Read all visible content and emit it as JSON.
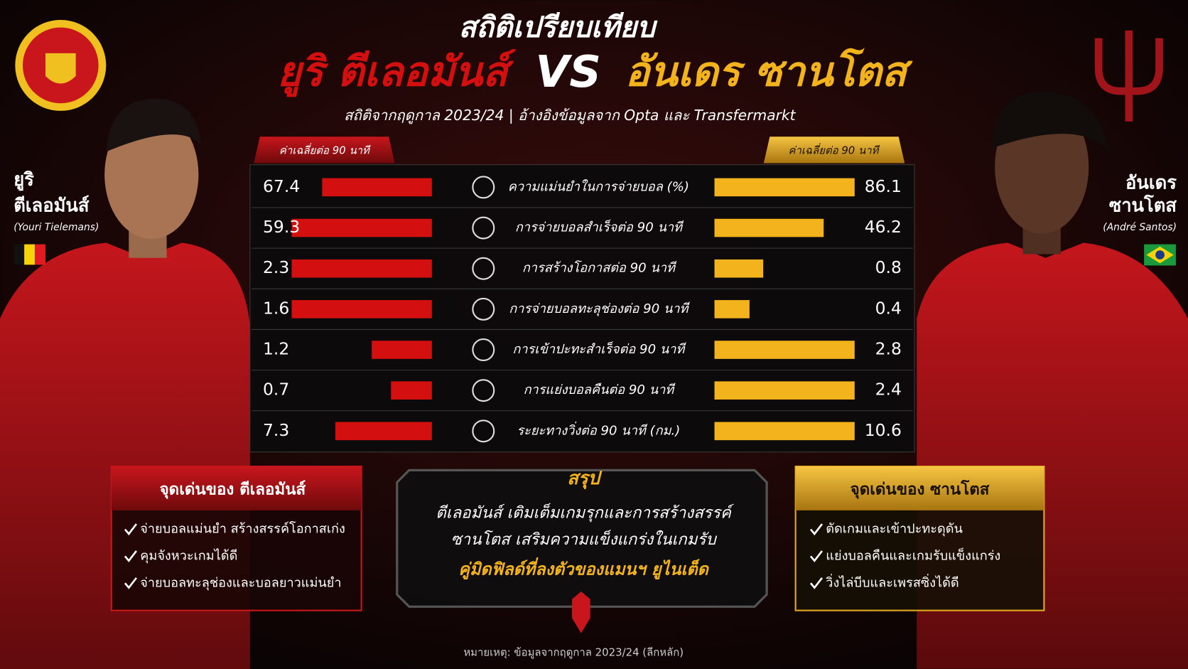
{
  "header": {
    "title": "สถิติเปรียบเทียบ",
    "left_name": "ยูริ ตีเลอมันส์",
    "vs": "VS",
    "right_name": "อันเดร ซานโตส",
    "subtitle": "สถิติจากฤดูกาล 2023/24 | อ้างอิงข้อมูลจาก Opta และ Transfermarkt"
  },
  "left_player": {
    "name_line1": "ยูริ",
    "name_line2": "ตีเลอมันส์",
    "english": "(Youri Tielemans)",
    "color": "#d40f0f"
  },
  "right_player": {
    "name_line1": "อันเดร",
    "name_line2": "ซานโตส",
    "english": "(André Santos)",
    "color": "#f2b31c"
  },
  "table": {
    "left_tab": "ค่าเฉลี่ยต่อ 90 นาที",
    "right_tab": "ค่าเฉลี่ยต่อ 90 นาที",
    "rows": [
      {
        "label": "ความแม่นยำในการจ่ายบอล (%)",
        "left": 67.4,
        "right": 86.1
      },
      {
        "label": "การจ่ายบอลสำเร็จต่อ 90 นาที",
        "left": 59.3,
        "right": 46.2
      },
      {
        "label": "การสร้างโอกาสต่อ 90 นาที",
        "left": 2.3,
        "right": 0.8
      },
      {
        "label": "การจ่ายบอลทะลุช่องต่อ 90 นาที",
        "left": 1.6,
        "right": 0.4
      },
      {
        "label": "การเข้าปะทะสำเร็จต่อ 90 นาที",
        "left": 1.2,
        "right": 2.8
      },
      {
        "label": "การแย่งบอลคืนต่อ 90 นาที",
        "left": 0.7,
        "right": 2.4
      },
      {
        "label": "ระยะทางวิ่งต่อ 90 นาที (กม.)",
        "left": 7.3,
        "right": 10.6
      }
    ]
  },
  "left_highlights": {
    "title": "จุดเด่นของ ตีเลอมันส์",
    "items": [
      "จ่ายบอลแม่นยำ สร้างสรรค์โอกาสเก่ง",
      "คุมจังหวะเกมได้ดี",
      "จ่ายบอลทะลุช่องและบอลยาวแม่นยำ"
    ]
  },
  "right_highlights": {
    "title": "จุดเด่นของ ซานโตส",
    "items": [
      "ตัดเกมและเข้าปะทะดุดัน",
      "แย่งบอลคืนและเกมรับแข็งแกร่ง",
      "วิ่งไล่บีบและเพรสซิ่งได้ดี"
    ]
  },
  "summary": {
    "title": "สรุป",
    "lines": [
      "ตีเลอมันส์ เติมเต็มเกมรุกและการสร้างสรรค์",
      "ซานโตส เสริมความแข็งแกร่งในเกมรับ"
    ],
    "highlight": "คู่มิดฟิลด์ที่ลงตัวของแมนฯ ยูไนเต็ด"
  },
  "footnote": "หมายเหตุ: ข้อมูลจากฤดูกาล 2023/24 (ลีกหลัก)"
}
